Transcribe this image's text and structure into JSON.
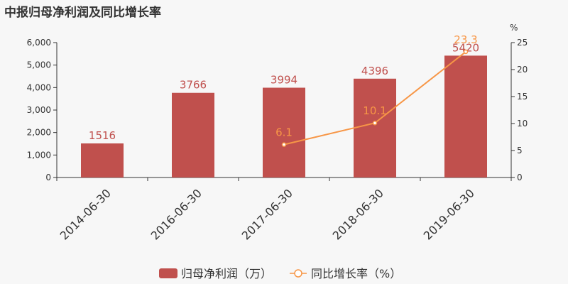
{
  "title": "中报归母净利润及同比增长率",
  "chart_data": {
    "type": "bar",
    "categories": [
      "2014-06-30",
      "2016-06-30",
      "2017-06-30",
      "2018-06-30",
      "2019-06-30"
    ],
    "series": [
      {
        "name": "归母净利润（万）",
        "type": "bar",
        "axis": "left",
        "color": "#c0504d",
        "values": [
          1516,
          3766,
          3994,
          4396,
          5420
        ],
        "labels": [
          "1516",
          "3766",
          "3994",
          "4396",
          "5420"
        ]
      },
      {
        "name": "同比增长率（%）",
        "type": "line",
        "axis": "right",
        "color": "#f79646",
        "values": [
          null,
          null,
          6.1,
          10.1,
          23.3
        ],
        "labels": [
          "",
          "",
          "6.1",
          "10.1",
          "23.3"
        ]
      }
    ],
    "y_left": {
      "ylim": [
        0,
        6000
      ],
      "ticks": [
        0,
        1000,
        2000,
        3000,
        4000,
        5000,
        6000
      ],
      "tick_labels": [
        "0",
        "1,000",
        "2,000",
        "3,000",
        "4,000",
        "5,000",
        "6,000"
      ]
    },
    "y_right": {
      "unit": "%",
      "ylim": [
        0,
        25
      ],
      "ticks": [
        0,
        5,
        10,
        15,
        20,
        25
      ],
      "tick_labels": [
        "0",
        "5",
        "10",
        "15",
        "20",
        "25"
      ]
    },
    "legend_position": "bottom",
    "grid": false
  }
}
